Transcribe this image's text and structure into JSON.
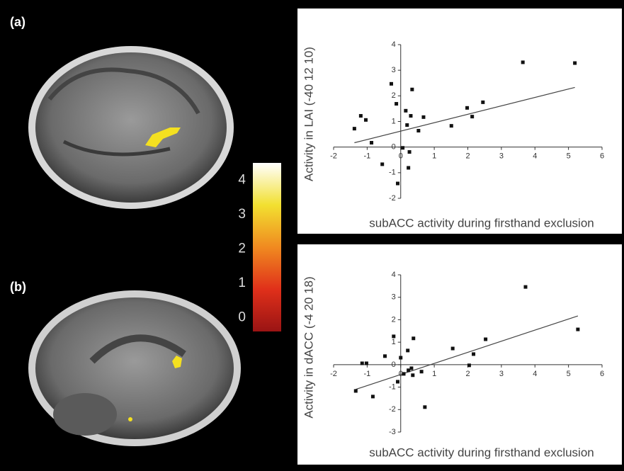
{
  "panel_labels": [
    "(a)",
    "(b)"
  ],
  "chart_data": [
    {
      "type": "scatter",
      "ylabel": "Activity in LAI (-40 12 10)",
      "xlabel": "subACC activity during firsthand exclusion",
      "color": "#111111",
      "x": [
        -1.38,
        -1.19,
        -1.04,
        -0.87,
        -0.55,
        -0.28,
        -0.13,
        -0.09,
        0.06,
        0.15,
        0.19,
        0.23,
        0.26,
        0.34,
        0.3,
        0.53,
        0.68,
        1.51,
        1.98,
        2.13,
        2.45,
        3.64,
        5.19
      ],
      "y": [
        0.72,
        1.22,
        1.06,
        0.17,
        -0.67,
        2.47,
        1.69,
        -1.42,
        -0.03,
        1.42,
        0.86,
        -0.81,
        -0.19,
        2.25,
        1.22,
        0.64,
        1.17,
        0.83,
        1.53,
        1.19,
        1.75,
        3.31,
        3.28
      ],
      "trendline": {
        "x": [
          -1.38,
          5.19
        ],
        "y": [
          0.17,
          2.33
        ]
      },
      "xlim": [
        -2,
        6
      ],
      "xticks": [
        -2,
        -1,
        0,
        1,
        2,
        3,
        4,
        5,
        6
      ],
      "ylim": [
        -2,
        4
      ],
      "yticks": [
        -2,
        -1,
        0,
        1,
        2,
        3,
        4
      ]
    },
    {
      "type": "scatter",
      "ylabel": "Activity in dACC (-4 20 18)",
      "xlabel": "subACC activity during firsthand exclusion",
      "color": "#111111",
      "x": [
        -1.34,
        -1.15,
        -1.02,
        -0.83,
        -0.47,
        -0.21,
        -0.09,
        0.0,
        0.09,
        0.21,
        0.23,
        0.32,
        0.38,
        0.36,
        0.62,
        0.72,
        1.55,
        2.04,
        2.17,
        2.53,
        3.72,
        5.28
      ],
      "y": [
        -1.17,
        0.06,
        0.06,
        -1.42,
        0.38,
        1.26,
        -0.76,
        0.31,
        -0.41,
        0.63,
        -0.25,
        -0.16,
        1.17,
        -0.47,
        -0.31,
        -1.89,
        0.72,
        -0.03,
        0.47,
        1.13,
        3.46,
        1.57
      ],
      "trendline": {
        "x": [
          -1.34,
          5.28
        ],
        "y": [
          -1.1,
          2.17
        ]
      },
      "xlim": [
        -2,
        6
      ],
      "xticks": [
        -2,
        -1,
        0,
        1,
        2,
        3,
        4,
        5,
        6
      ],
      "ylim": [
        -3,
        4
      ],
      "yticks": [
        -3,
        -2,
        -1,
        0,
        1,
        2,
        3,
        4
      ]
    },
    {
      "type": "colorbar",
      "colors": [
        "#9a1414",
        "#e0301a",
        "#f08a20",
        "#f2e030",
        "#ffffff"
      ],
      "ylim": [
        -0.4,
        4.5
      ],
      "yticks": [
        0,
        1,
        2,
        3,
        4
      ]
    }
  ]
}
